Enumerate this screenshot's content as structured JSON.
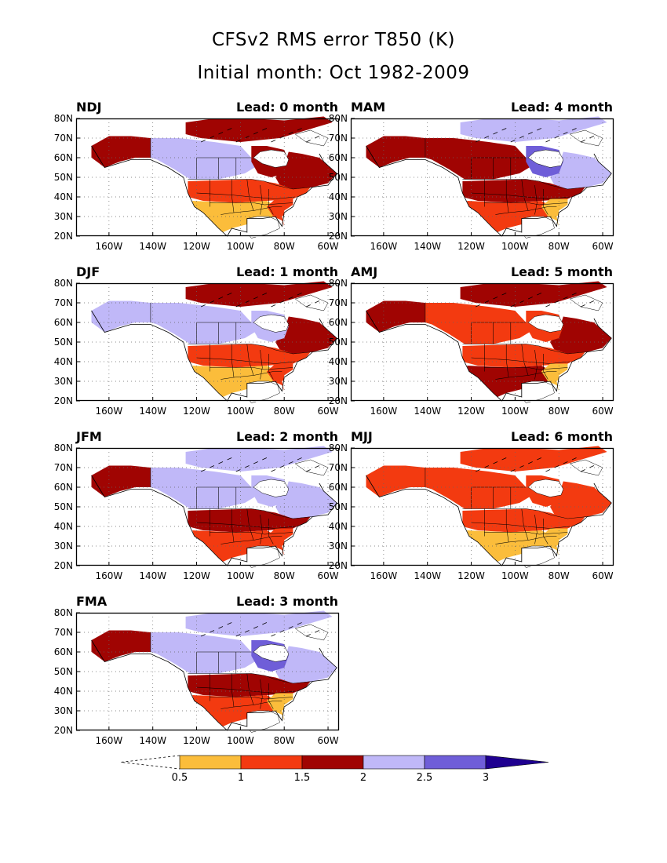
{
  "title": "CFSv2 RMS error T850 (K)",
  "subtitle": "Initial month: Oct 1982-2009",
  "axes": {
    "lat_ticks": [
      "80N",
      "70N",
      "60N",
      "50N",
      "40N",
      "30N",
      "20N"
    ],
    "lon_ticks": [
      "160W",
      "140W",
      "120W",
      "100W",
      "80W",
      "60W"
    ]
  },
  "panels": [
    {
      "season": "NDJ",
      "lead": "Lead: 0 month",
      "lead_month": 0,
      "regions": {
        "arctic": "c3",
        "alaska": "c3",
        "west_canada": "c4",
        "east_canada": "c3",
        "hudson": "c3",
        "north_us": "c2",
        "south_us": "c1",
        "southeast": "c2"
      }
    },
    {
      "season": "DJF",
      "lead": "Lead: 1 month",
      "lead_month": 1,
      "regions": {
        "arctic": "c3",
        "alaska": "c4",
        "west_canada": "c4",
        "east_canada": "c3",
        "hudson": "c4",
        "north_us": "c2",
        "south_us": "c1",
        "southeast": "c2"
      }
    },
    {
      "season": "JFM",
      "lead": "Lead: 2 month",
      "lead_month": 2,
      "regions": {
        "arctic": "c4",
        "alaska": "c3",
        "west_canada": "c4",
        "east_canada": "c4",
        "hudson": "c4",
        "north_us": "c3",
        "south_us": "c2",
        "southeast": "c2"
      }
    },
    {
      "season": "FMA",
      "lead": "Lead: 3 month",
      "lead_month": 3,
      "regions": {
        "arctic": "c4",
        "alaska": "c3",
        "west_canada": "c4",
        "east_canada": "c4",
        "hudson": "c5",
        "north_us": "c3",
        "south_us": "c2",
        "southeast": "c1"
      }
    },
    {
      "season": "MAM",
      "lead": "Lead: 4 month",
      "lead_month": 4,
      "regions": {
        "arctic": "c4",
        "alaska": "c3",
        "west_canada": "c3",
        "east_canada": "c4",
        "hudson": "c5",
        "north_us": "c3",
        "south_us": "c2",
        "southeast": "c1"
      }
    },
    {
      "season": "AMJ",
      "lead": "Lead: 5 month",
      "lead_month": 5,
      "regions": {
        "arctic": "c3",
        "alaska": "c3",
        "west_canada": "c2",
        "east_canada": "c3",
        "hudson": "c2",
        "north_us": "c2",
        "south_us": "c3",
        "southeast": "c1"
      }
    },
    {
      "season": "MJJ",
      "lead": "Lead: 6 month",
      "lead_month": 6,
      "regions": {
        "arctic": "c2",
        "alaska": "c2",
        "west_canada": "c2",
        "east_canada": "c2",
        "hudson": "c2",
        "north_us": "c2",
        "south_us": "c1",
        "southeast": "c1"
      }
    }
  ],
  "colorbar": {
    "labels": [
      "0.5",
      "1",
      "1.5",
      "2",
      "2.5",
      "3"
    ],
    "colors": {
      "c1": "#fbbd3b",
      "c2": "#f33a10",
      "c3": "#a00402",
      "c4": "#c0b8f8",
      "c5": "#6f5ed8",
      "c6": "#1f0090"
    }
  }
}
